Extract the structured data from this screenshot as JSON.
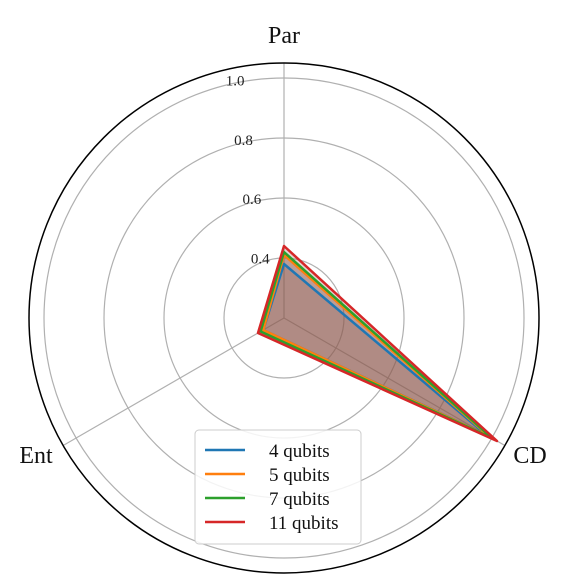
{
  "chart_data": {
    "type": "radar",
    "axes": [
      "Par",
      "CD",
      "Ent"
    ],
    "rlim": [
      0.2,
      1.05
    ],
    "rticks": [
      0.4,
      0.6,
      0.8,
      1.0
    ],
    "rtick_labels": [
      "0.4",
      "0.6",
      "0.8",
      "1.0"
    ],
    "grid": true,
    "legend_position": "bottom-center",
    "series": [
      {
        "name": "4 qubits",
        "values": [
          0.38,
          0.98,
          0.28
        ],
        "color": "#1f77b4"
      },
      {
        "name": "5 qubits",
        "values": [
          0.41,
          0.99,
          0.28
        ],
        "color": "#ff7f0e"
      },
      {
        "name": "7 qubits",
        "values": [
          0.42,
          1.0,
          0.29
        ],
        "color": "#2ca02c"
      },
      {
        "name": "11 qubits",
        "values": [
          0.44,
          1.02,
          0.3
        ],
        "color": "#d62728"
      }
    ],
    "fill_color": "#8c564b"
  }
}
